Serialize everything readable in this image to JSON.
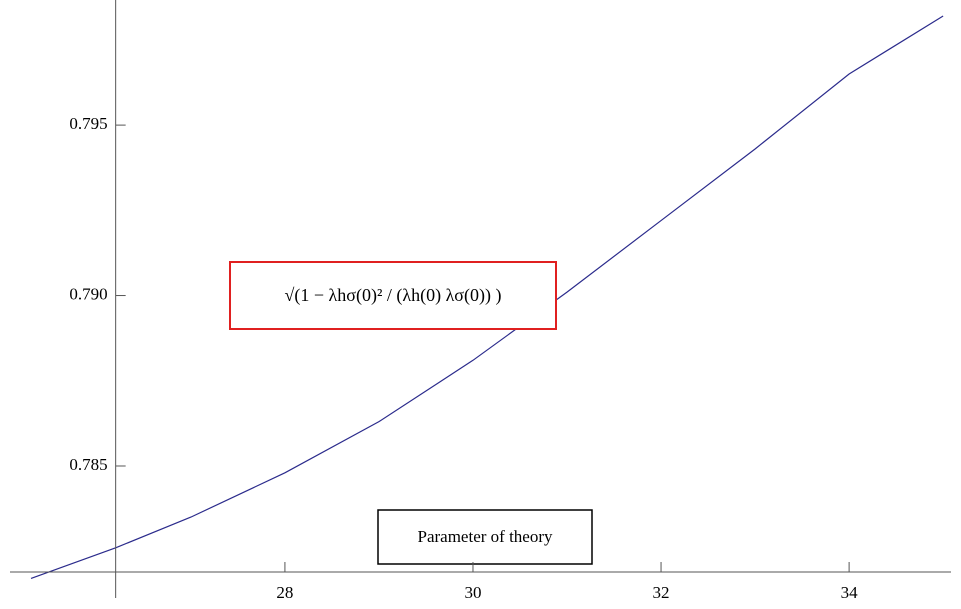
{
  "chart_data": {
    "type": "line",
    "x_label": "Parameter of theory",
    "annotation": "√(1 − λhσ(0)² / (λh(0) λσ(0)) )",
    "x": [
      25.3,
      26.2,
      27,
      28,
      29,
      30,
      31,
      32,
      33,
      34,
      35
    ],
    "series": [
      {
        "color": "#2b2b8c",
        "values": [
          0.7817,
          0.7826,
          0.7835,
          0.7848,
          0.7863,
          0.7881,
          0.7901,
          0.7922,
          0.7943,
          0.7965,
          0.7982
        ]
      }
    ],
    "xlim": [
      24.97,
      35.19
    ],
    "ylim": [
      0.78189,
      0.79867
    ],
    "axes_origin": [
      26.2,
      0.78189
    ],
    "xticks": [
      28,
      30,
      32,
      34
    ],
    "yticks": [
      {
        "value": 0.785,
        "label": "0.785"
      },
      {
        "value": 0.79,
        "label": "0.790"
      },
      {
        "value": 0.795,
        "label": "0.795"
      }
    ],
    "grid": false
  }
}
